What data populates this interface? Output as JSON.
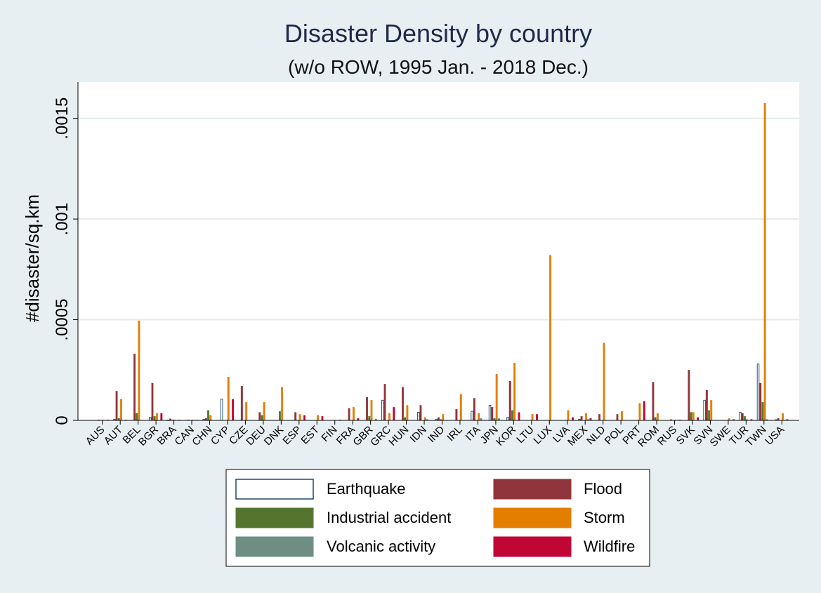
{
  "chart_data": {
    "type": "bar",
    "title": "Disaster Density by country",
    "subtitle": "(w/o ROW, 1995 Jan. - 2018 Dec.)",
    "xlabel": "",
    "ylabel": "#disaster/sq.km",
    "ylim": [
      0,
      0.00168
    ],
    "yticks": [
      {
        "value": 0,
        "label": "0"
      },
      {
        "value": 0.0005,
        "label": ".0005"
      },
      {
        "value": 0.001,
        "label": ".001"
      },
      {
        "value": 0.0015,
        "label": ".0015"
      }
    ],
    "grid": true,
    "legend_position": "bottom",
    "categories": [
      "AUS",
      "AUT",
      "BEL",
      "BGR",
      "BRA",
      "CAN",
      "CHN",
      "CYP",
      "CZE",
      "DEU",
      "DNK",
      "ESP",
      "EST",
      "FIN",
      "FRA",
      "GBR",
      "GRC",
      "HUN",
      "IDN",
      "IND",
      "IRL",
      "ITA",
      "JPN",
      "KOR",
      "LTU",
      "LUX",
      "LVA",
      "MEX",
      "NLD",
      "POL",
      "PRT",
      "ROM",
      "RUS",
      "SVK",
      "SVN",
      "SWE",
      "TUR",
      "TWN",
      "USA"
    ],
    "series": [
      {
        "name": "Earthquake",
        "color": "#ffffff",
        "stroke": "#1a476f",
        "values": [
          0,
          5e-06,
          0,
          1.5e-05,
          1e-06,
          0,
          5e-06,
          0.000105,
          0,
          0,
          0,
          0,
          0,
          0,
          0,
          0,
          0.0001,
          0,
          4e-05,
          5e-06,
          0,
          4.5e-05,
          7.5e-05,
          1.5e-05,
          0,
          0,
          0,
          5e-06,
          0,
          0,
          0,
          0,
          0,
          0,
          0.0001,
          0,
          4e-05,
          0.00028,
          3e-06
        ]
      },
      {
        "name": "Flood",
        "color": "#90353b",
        "stroke": "#90353b",
        "values": [
          3e-06,
          0.000145,
          0.00033,
          0.000185,
          8e-06,
          3e-06,
          1e-05,
          0,
          0.00017,
          4e-05,
          0,
          4e-05,
          0,
          0,
          6e-05,
          0.000115,
          0.00018,
          0.000165,
          7.5e-05,
          1.5e-05,
          5.5e-05,
          0.00011,
          6.5e-05,
          0.000195,
          0,
          0,
          0,
          2e-05,
          3e-05,
          3e-05,
          0,
          0.00019,
          4e-06,
          0.00025,
          0.00015,
          0,
          3.5e-05,
          0.000185,
          1e-05
        ]
      },
      {
        "name": "Industrial accident",
        "color": "#55752f",
        "stroke": "#55752f",
        "values": [
          0,
          1e-05,
          3.5e-05,
          2e-05,
          3e-06,
          0,
          5e-05,
          0,
          0,
          2.5e-05,
          4.5e-05,
          0,
          0,
          0,
          0,
          2e-05,
          0,
          1.5e-05,
          0,
          5e-06,
          0,
          0,
          1e-05,
          5e-05,
          0,
          0,
          0,
          0,
          0,
          0,
          0,
          1.5e-05,
          0,
          4e-05,
          5e-05,
          0,
          2e-05,
          9e-05,
          0
        ]
      },
      {
        "name": "Storm",
        "color": "#e37e00",
        "stroke": "#e37e00",
        "values": [
          3e-06,
          0.000105,
          0.000495,
          3.5e-05,
          2e-06,
          3e-06,
          2.5e-05,
          0.000215,
          9e-05,
          9e-05,
          0.000165,
          3e-05,
          2.5e-05,
          0,
          6.5e-05,
          0.0001,
          3.5e-05,
          7.5e-05,
          1.5e-05,
          3e-05,
          0.00013,
          3.5e-05,
          0.00023,
          0.000285,
          3e-05,
          0.00082,
          5e-05,
          3.5e-05,
          0.000385,
          4.5e-05,
          8.5e-05,
          3.5e-05,
          3e-06,
          4e-05,
          0.0001,
          1e-05,
          5e-06,
          0.001575,
          3.5e-05
        ]
      },
      {
        "name": "Volcanic activity",
        "color": "#6e8e84",
        "stroke": "#6e8e84",
        "values": [
          0,
          0,
          0,
          0,
          0,
          0,
          0,
          0,
          0,
          0,
          0,
          0,
          0,
          0,
          0,
          0,
          0,
          0,
          5e-06,
          0,
          0,
          1e-05,
          1e-05,
          0,
          0,
          0,
          0,
          5e-06,
          0,
          0,
          0,
          0,
          0,
          0,
          0,
          0,
          0,
          5e-06,
          2e-06
        ]
      },
      {
        "name": "Wildfire",
        "color": "#c10534",
        "stroke": "#c10534",
        "values": [
          3e-06,
          3e-06,
          0,
          3.5e-05,
          2e-06,
          2e-06,
          0,
          0.000105,
          0,
          0,
          0,
          2.5e-05,
          2e-05,
          3e-06,
          1e-05,
          5e-06,
          6.5e-05,
          0,
          0,
          0,
          0,
          0,
          0,
          4e-05,
          3e-05,
          0,
          1.5e-05,
          1e-05,
          0,
          0,
          9.5e-05,
          0,
          3e-06,
          1.5e-05,
          0,
          5e-06,
          5e-06,
          0,
          5e-06
        ]
      }
    ]
  }
}
